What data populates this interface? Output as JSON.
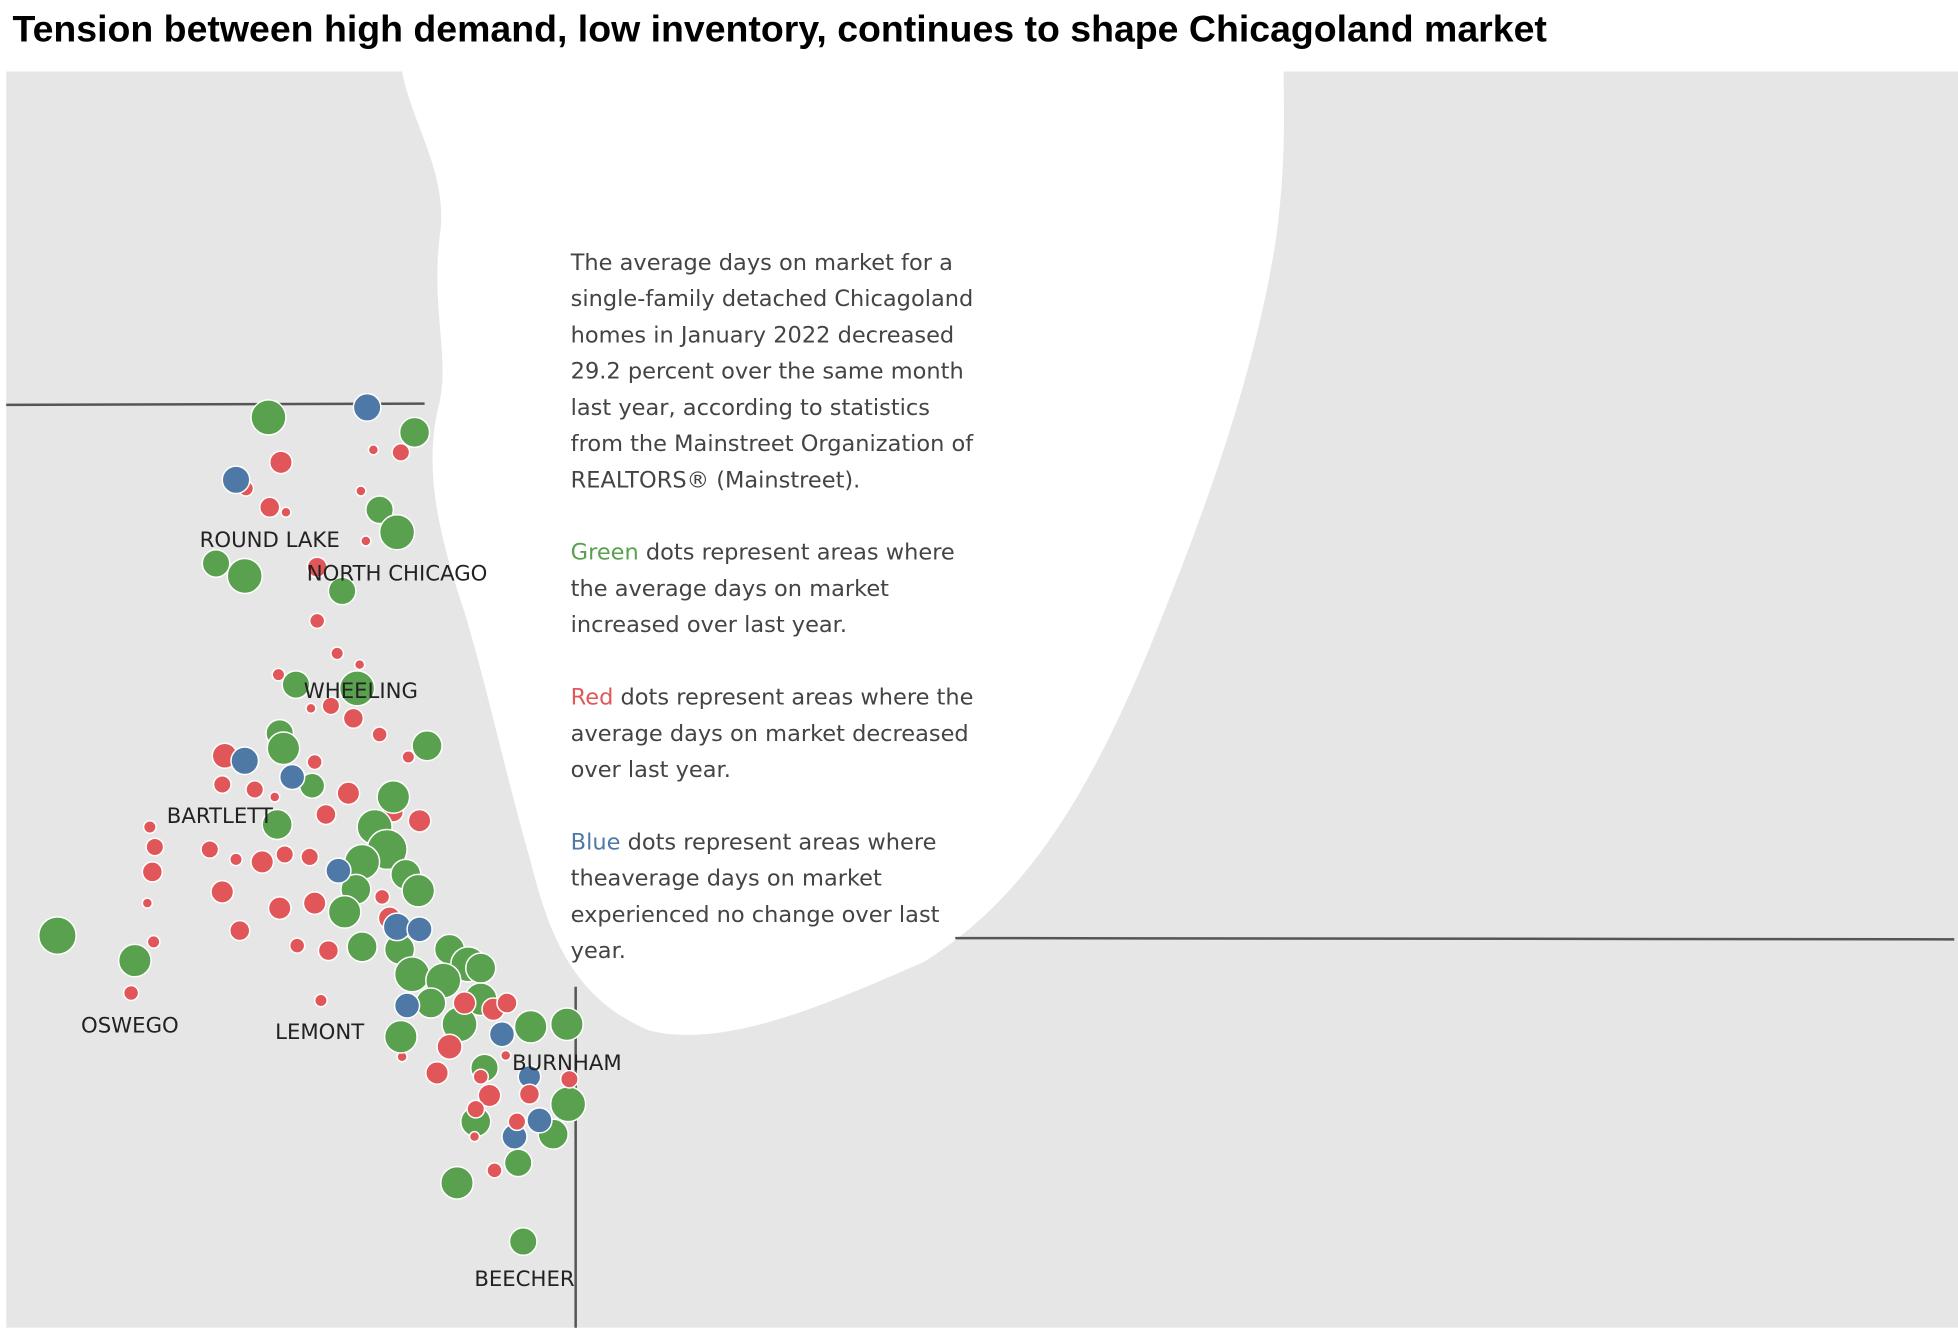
{
  "title": "Tension between high demand, low inventory, continues to shape Chicagoland market",
  "labels": [
    "ROUND LAKE",
    "NORTH CHICAGO",
    "WHEELING",
    "BARTLETT",
    "OSWEGO",
    "LEMONT",
    "BURNHAM",
    "BEECHER"
  ],
  "annotation": {
    "intro": "The average days on market for a single-family detached Chicagoland homes in January 2022 decreased 29.2 percent over the same month last year, according to statistics from the Mainstreet Organization of REALTORS® (Mainstreet).",
    "legend": [
      {
        "word": "Green",
        "text": "dots represent areas where the average days on market increased over last year."
      },
      {
        "word": "Red",
        "text": "dots represent areas where the average days on market decreased over last year."
      },
      {
        "word": "Blue",
        "text": "dots represent areas where theaverage days on market experienced no change over last year."
      }
    ]
  }
}
